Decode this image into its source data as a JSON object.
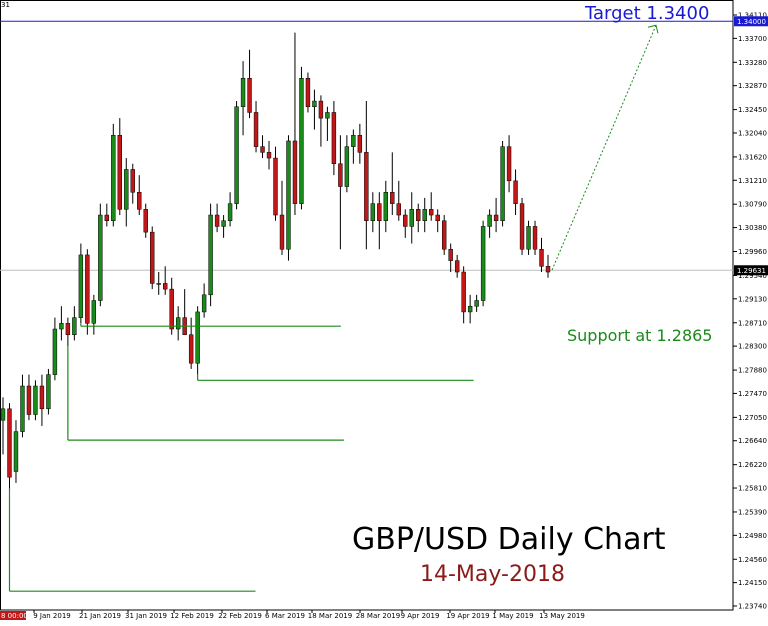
{
  "chart_data": {
    "type": "candlestick",
    "title": "GBP/USD Daily Chart",
    "subtitle": "14-May-2018",
    "corner_label": "31",
    "y_ticks": [
      "1.34110",
      "1.33700",
      "1.33280",
      "1.32870",
      "1.32450",
      "1.32040",
      "1.31620",
      "1.31210",
      "1.30790",
      "1.30380",
      "1.29960",
      "1.29540",
      "1.29130",
      "1.28710",
      "1.28300",
      "1.27880",
      "1.27470",
      "1.27050",
      "1.26640",
      "1.26220",
      "1.25810",
      "1.25390",
      "1.24980",
      "1.24560",
      "1.24150",
      "1.23740"
    ],
    "ylim": [
      1.2374,
      1.3411
    ],
    "x_ticks": [
      "9 Jan 2019",
      "21 Jan 2019",
      "31 Jan 2019",
      "12 Feb 2019",
      "22 Feb 2019",
      "6 Mar 2019",
      "18 Mar 2019",
      "28 Mar 2019",
      "9 Apr 2019",
      "19 Apr 2019",
      "1 May 2019",
      "13 May 2019"
    ],
    "x_start_label": "8 00:00",
    "current_price": "1.29631",
    "current_price_value": 1.29631,
    "target": {
      "label": "Target 1.3400",
      "value": 1.34,
      "tag": "1.34000"
    },
    "support": {
      "label": "Support at 1.2865",
      "value": 1.2865
    },
    "support_levels": [
      1.277,
      1.2665,
      1.24
    ],
    "colors": {
      "bull": "#1a8a1a",
      "bear": "#c01818",
      "target": "#1a1ad0",
      "support": "#1a8a1a",
      "title": "#000000",
      "date": "#8b1a1a"
    },
    "candles": [
      [
        1.27,
        1.274,
        1.264,
        1.272
      ],
      [
        1.272,
        1.273,
        1.258,
        1.26
      ],
      [
        1.261,
        1.27,
        1.259,
        1.268
      ],
      [
        1.268,
        1.278,
        1.267,
        1.276
      ],
      [
        1.276,
        1.278,
        1.27,
        1.271
      ],
      [
        1.271,
        1.277,
        1.27,
        1.276
      ],
      [
        1.276,
        1.278,
        1.269,
        1.272
      ],
      [
        1.272,
        1.279,
        1.271,
        1.278
      ],
      [
        1.278,
        1.288,
        1.277,
        1.286
      ],
      [
        1.286,
        1.29,
        1.284,
        1.287
      ],
      [
        1.287,
        1.288,
        1.283,
        1.285
      ],
      [
        1.285,
        1.29,
        1.284,
        1.288
      ],
      [
        1.288,
        1.301,
        1.287,
        1.299
      ],
      [
        1.299,
        1.3,
        1.285,
        1.287
      ],
      [
        1.287,
        1.292,
        1.285,
        1.291
      ],
      [
        1.291,
        1.308,
        1.29,
        1.306
      ],
      [
        1.306,
        1.308,
        1.304,
        1.305
      ],
      [
        1.305,
        1.322,
        1.304,
        1.32
      ],
      [
        1.32,
        1.323,
        1.306,
        1.307
      ],
      [
        1.307,
        1.316,
        1.304,
        1.314
      ],
      [
        1.314,
        1.315,
        1.308,
        1.31
      ],
      [
        1.31,
        1.313,
        1.306,
        1.307
      ],
      [
        1.307,
        1.308,
        1.302,
        1.303
      ],
      [
        1.303,
        1.304,
        1.293,
        1.294
      ],
      [
        1.294,
        1.296,
        1.292,
        1.294
      ],
      [
        1.294,
        1.297,
        1.292,
        1.293
      ],
      [
        1.293,
        1.295,
        1.285,
        1.286
      ],
      [
        1.286,
        1.29,
        1.284,
        1.288
      ],
      [
        1.288,
        1.293,
        1.285,
        1.285
      ],
      [
        1.285,
        1.288,
        1.279,
        1.28
      ],
      [
        1.28,
        1.29,
        1.278,
        1.289
      ],
      [
        1.289,
        1.294,
        1.288,
        1.292
      ],
      [
        1.292,
        1.308,
        1.29,
        1.306
      ],
      [
        1.306,
        1.308,
        1.303,
        1.304
      ],
      [
        1.304,
        1.306,
        1.302,
        1.305
      ],
      [
        1.305,
        1.31,
        1.304,
        1.308
      ],
      [
        1.308,
        1.326,
        1.307,
        1.325
      ],
      [
        1.325,
        1.333,
        1.32,
        1.33
      ],
      [
        1.33,
        1.335,
        1.323,
        1.324
      ],
      [
        1.324,
        1.326,
        1.317,
        1.318
      ],
      [
        1.318,
        1.32,
        1.316,
        1.317
      ],
      [
        1.317,
        1.319,
        1.314,
        1.316
      ],
      [
        1.316,
        1.318,
        1.305,
        1.306
      ],
      [
        1.306,
        1.312,
        1.299,
        1.3
      ],
      [
        1.3,
        1.32,
        1.298,
        1.319
      ],
      [
        1.319,
        1.338,
        1.306,
        1.308
      ],
      [
        1.308,
        1.332,
        1.307,
        1.33
      ],
      [
        1.33,
        1.331,
        1.324,
        1.325
      ],
      [
        1.325,
        1.328,
        1.321,
        1.326
      ],
      [
        1.326,
        1.327,
        1.318,
        1.323
      ],
      [
        1.323,
        1.325,
        1.319,
        1.324
      ],
      [
        1.324,
        1.326,
        1.313,
        1.315
      ],
      [
        1.315,
        1.32,
        1.3,
        1.311
      ],
      [
        1.311,
        1.32,
        1.31,
        1.318
      ],
      [
        1.318,
        1.321,
        1.315,
        1.32
      ],
      [
        1.32,
        1.322,
        1.315,
        1.317
      ],
      [
        1.317,
        1.326,
        1.3,
        1.305
      ],
      [
        1.305,
        1.31,
        1.303,
        1.308
      ],
      [
        1.308,
        1.31,
        1.3,
        1.305
      ],
      [
        1.305,
        1.312,
        1.303,
        1.31
      ],
      [
        1.31,
        1.317,
        1.306,
        1.308
      ],
      [
        1.308,
        1.312,
        1.305,
        1.306
      ],
      [
        1.306,
        1.307,
        1.302,
        1.304
      ],
      [
        1.304,
        1.31,
        1.301,
        1.307
      ],
      [
        1.307,
        1.308,
        1.303,
        1.305
      ],
      [
        1.305,
        1.309,
        1.303,
        1.307
      ],
      [
        1.307,
        1.31,
        1.305,
        1.306
      ],
      [
        1.306,
        1.307,
        1.303,
        1.305
      ],
      [
        1.305,
        1.306,
        1.299,
        1.3
      ],
      [
        1.3,
        1.301,
        1.296,
        1.298
      ],
      [
        1.298,
        1.299,
        1.295,
        1.296
      ],
      [
        1.296,
        1.297,
        1.287,
        1.289
      ],
      [
        1.289,
        1.292,
        1.287,
        1.29
      ],
      [
        1.29,
        1.292,
        1.289,
        1.291
      ],
      [
        1.291,
        1.305,
        1.29,
        1.304
      ],
      [
        1.304,
        1.307,
        1.302,
        1.306
      ],
      [
        1.306,
        1.309,
        1.303,
        1.305
      ],
      [
        1.305,
        1.319,
        1.304,
        1.318
      ],
      [
        1.318,
        1.32,
        1.31,
        1.312
      ],
      [
        1.312,
        1.314,
        1.306,
        1.308
      ],
      [
        1.308,
        1.309,
        1.299,
        1.3
      ],
      [
        1.3,
        1.305,
        1.299,
        1.304
      ],
      [
        1.304,
        1.305,
        1.299,
        1.3
      ],
      [
        1.3,
        1.302,
        1.296,
        1.297
      ],
      [
        1.297,
        1.299,
        1.295,
        1.296
      ]
    ]
  }
}
